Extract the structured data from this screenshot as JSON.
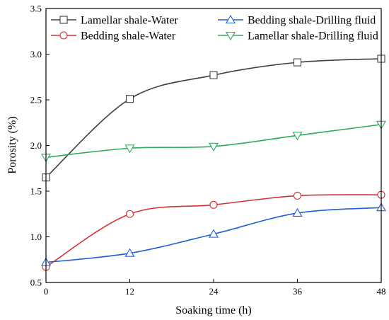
{
  "chart_data": {
    "type": "line",
    "xlabel": "Soaking time (h)",
    "ylabel": "Porosity (%)",
    "xlim": [
      0,
      48
    ],
    "ylim": [
      0.5,
      3.5
    ],
    "x_ticks": [
      0,
      12,
      24,
      36,
      48
    ],
    "y_ticks": [
      0.5,
      1.0,
      1.5,
      2.0,
      2.5,
      3.0,
      3.5
    ],
    "x_tick_labels": [
      "0",
      "12",
      "24",
      "36",
      "48"
    ],
    "y_tick_labels": [
      "0.5",
      "1.0",
      "1.5",
      "2.0",
      "2.5",
      "3.0",
      "3.5"
    ],
    "grid": false,
    "legend_position": "top",
    "series": [
      {
        "name": "Lamellar shale-Water",
        "marker": "square",
        "color": "#404040",
        "x": [
          0,
          12,
          24,
          36,
          48
        ],
        "values": [
          1.65,
          2.51,
          2.77,
          2.91,
          2.95
        ]
      },
      {
        "name": "Bedding shale-Water",
        "marker": "circle",
        "color": "#d23232",
        "x": [
          0,
          12,
          24,
          36,
          48
        ],
        "values": [
          0.67,
          1.25,
          1.35,
          1.45,
          1.46
        ]
      },
      {
        "name": "Bedding shale-Drilling fluid",
        "marker": "triangle-up",
        "color": "#1f5fd6",
        "x": [
          0,
          12,
          24,
          36,
          48
        ],
        "values": [
          0.72,
          0.82,
          1.03,
          1.26,
          1.32
        ]
      },
      {
        "name": "Lamellar shale-Drilling fluid",
        "marker": "triangle-down",
        "color": "#2eab5c",
        "x": [
          0,
          12,
          24,
          36,
          48
        ],
        "values": [
          1.87,
          1.97,
          1.99,
          2.11,
          2.23
        ]
      }
    ]
  }
}
